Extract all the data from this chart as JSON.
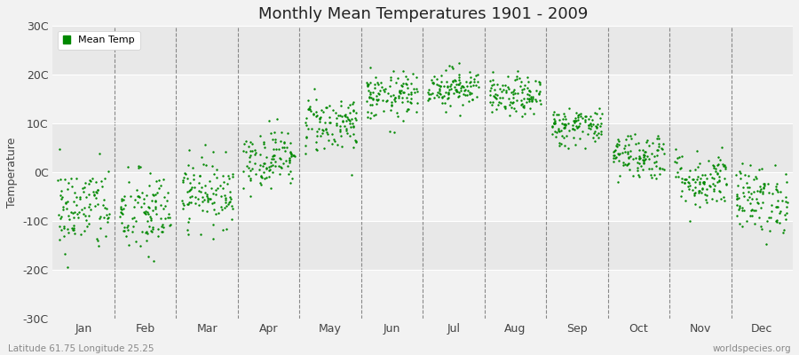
{
  "title": "Monthly Mean Temperatures 1901 - 2009",
  "ylabel": "Temperature",
  "subtitle_left": "Latitude 61.75 Longitude 25.25",
  "subtitle_right": "worldspecies.org",
  "dot_color": "#008800",
  "bg_color": "#f2f2f2",
  "plot_bg": "#f2f2f2",
  "ylim": [
    -30,
    30
  ],
  "ytick_labels": [
    "30C",
    "20C",
    "10C",
    "0C",
    "-10C",
    "-20C",
    "-30C"
  ],
  "ytick_vals": [
    30,
    20,
    10,
    0,
    -10,
    -20,
    -30
  ],
  "months": [
    "Jan",
    "Feb",
    "Mar",
    "Apr",
    "May",
    "Jun",
    "Jul",
    "Aug",
    "Sep",
    "Oct",
    "Nov",
    "Dec"
  ],
  "month_means": [
    -7.5,
    -8.5,
    -4.0,
    3.0,
    10.0,
    15.5,
    17.5,
    15.5,
    9.5,
    3.5,
    -1.5,
    -5.5
  ],
  "month_stds": [
    4.5,
    4.5,
    3.5,
    3.0,
    3.0,
    2.5,
    2.0,
    2.0,
    2.0,
    2.5,
    3.0,
    3.5
  ],
  "n_years": 109,
  "seed": 42,
  "marker_size": 3
}
